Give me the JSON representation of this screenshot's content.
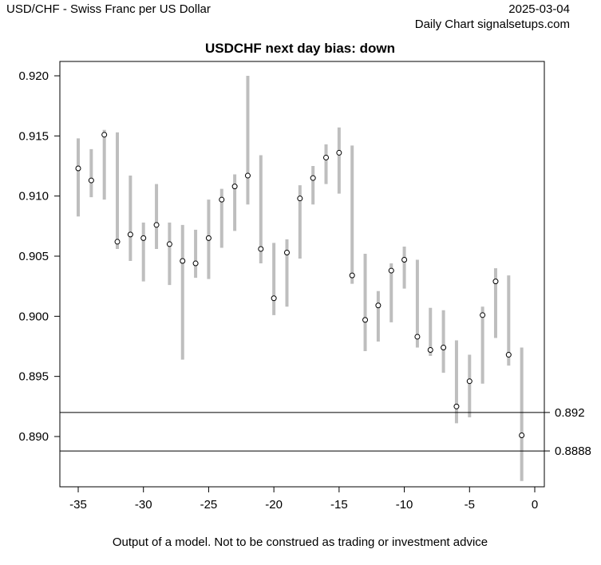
{
  "header": {
    "left": "USD/CHF - Swiss Franc per US Dollar",
    "date": "2025-03-04",
    "right": "Daily Chart signalsetups.com"
  },
  "footer": "Output of a model. Not to be construed as trading or investment advice",
  "chart_data": {
    "type": "range-dot",
    "title": "USDCHF next day bias: down",
    "xlabel": "",
    "ylabel": "",
    "xlim": [
      -36.4,
      0.8
    ],
    "ylim": [
      0.8863,
      0.9216
    ],
    "x_ticks": [
      "-35",
      "-30",
      "-25",
      "-20",
      "-15",
      "-10",
      "-5",
      "0"
    ],
    "y_ticks": [
      "0.890",
      "0.895",
      "0.900",
      "0.905",
      "0.910",
      "0.915",
      "0.920"
    ],
    "grid": false,
    "colors": {
      "range": "#bebebe",
      "point": "#000000",
      "level": "#000000"
    },
    "x": [
      -35,
      -34,
      -33,
      -32,
      -31,
      -30,
      -29,
      -28,
      -27,
      -26,
      -25,
      -24,
      -23,
      -22,
      -21,
      -20,
      -19,
      -18,
      -17,
      -16,
      -15,
      -14,
      -13,
      -12,
      -11,
      -10,
      -9,
      -8,
      -7,
      -6,
      -5,
      -4,
      -3,
      -2,
      -1
    ],
    "points": [
      0.9123,
      0.9113,
      0.9151,
      0.9062,
      0.9068,
      0.9065,
      0.9076,
      0.906,
      0.9046,
      0.9044,
      0.9065,
      0.9097,
      0.9108,
      0.9117,
      0.9056,
      0.9015,
      0.9053,
      0.9098,
      0.9115,
      0.9132,
      0.9136,
      0.9034,
      0.8997,
      0.9009,
      0.9038,
      0.9047,
      0.8983,
      0.8972,
      0.8974,
      0.8925,
      0.8946,
      0.9001,
      0.9029,
      0.8968,
      0.8901
    ],
    "high": [
      0.9148,
      0.9139,
      0.9155,
      0.9153,
      0.9117,
      0.9078,
      0.911,
      0.9078,
      0.9076,
      0.9072,
      0.9097,
      0.9106,
      0.9118,
      0.92,
      0.9134,
      0.9061,
      0.9064,
      0.9109,
      0.9125,
      0.9143,
      0.9157,
      0.9142,
      0.9052,
      0.9021,
      0.9044,
      0.9058,
      0.9047,
      0.9007,
      0.9005,
      0.898,
      0.8968,
      0.9008,
      0.904,
      0.9034,
      0.8974
    ],
    "low": [
      0.9083,
      0.9099,
      0.9097,
      0.9056,
      0.9046,
      0.9029,
      0.9056,
      0.9026,
      0.8964,
      0.9032,
      0.9031,
      0.9057,
      0.9071,
      0.9093,
      0.9044,
      0.9001,
      0.9008,
      0.9048,
      0.9093,
      0.911,
      0.9102,
      0.9027,
      0.8971,
      0.8979,
      0.8995,
      0.9023,
      0.8974,
      0.8967,
      0.8953,
      0.8911,
      0.8916,
      0.8944,
      0.8982,
      0.8959,
      0.8863
    ],
    "levels": [
      {
        "value": 0.892,
        "label": "0.892"
      },
      {
        "value": 0.8888,
        "label": "0.8888"
      }
    ]
  }
}
